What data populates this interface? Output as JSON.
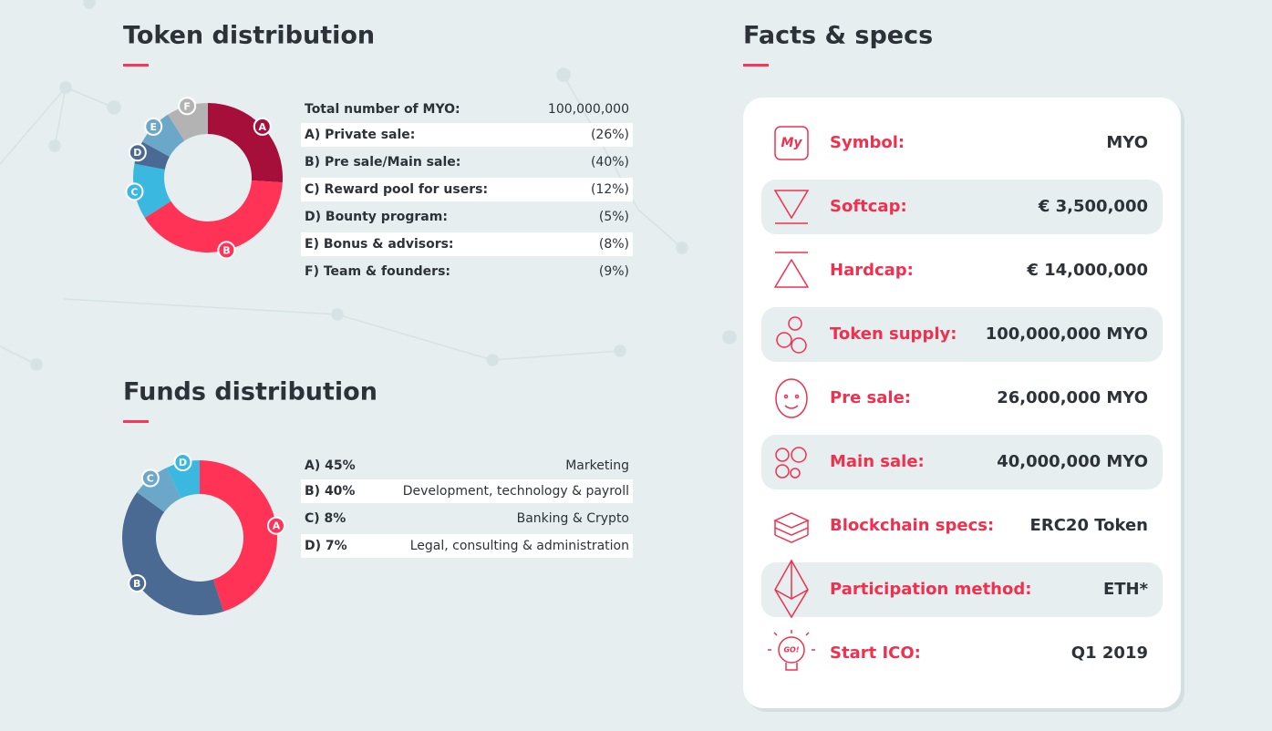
{
  "token_distribution": {
    "title": "Token distribution",
    "total_label": "Total number of MYO:",
    "total_value": "100,000,000",
    "chart": {
      "type": "donut",
      "letters": [
        "A",
        "B",
        "C",
        "D",
        "E",
        "F"
      ],
      "categories": [
        "A) Private sale:",
        "B) Pre sale/Main sale:",
        "C) Reward pool for users:",
        "D) Bounty program:",
        "E) Bonus & advisors:",
        "F) Team & founders:"
      ],
      "values": [
        26,
        40,
        12,
        5,
        8,
        9
      ],
      "value_labels": [
        "(26%)",
        "(40%)",
        "(12%)",
        "(5%)",
        "(8%)",
        "(9%)"
      ],
      "colors": [
        "#a50f3a",
        "#ff3355",
        "#3ab8e0",
        "#4a6a93",
        "#6aa7c8",
        "#b3b3b3"
      ]
    }
  },
  "funds_distribution": {
    "title": "Funds distribution",
    "chart": {
      "type": "donut",
      "letters": [
        "A",
        "B",
        "C",
        "D"
      ],
      "categories": [
        "Marketing",
        "Development, technology & payroll",
        "Banking & Crypto",
        "Legal, consulting & administration"
      ],
      "values": [
        45,
        40,
        8,
        7
      ],
      "value_labels": [
        "A) 45%",
        "B) 40%",
        "C) 8%",
        "D) 7%"
      ],
      "colors": [
        "#ff3355",
        "#4a6a93",
        "#6aa7c8",
        "#3ab8e0"
      ]
    }
  },
  "facts": {
    "title": "Facts & specs",
    "rows": [
      {
        "label": "Symbol:",
        "value": "MYO",
        "icon_text": "My"
      },
      {
        "label": "Softcap:",
        "value": "€ 3,500,000"
      },
      {
        "label": "Hardcap:",
        "value": "€ 14,000,000"
      },
      {
        "label": "Token supply:",
        "value": "100,000,000 MYO"
      },
      {
        "label": "Pre sale:",
        "value": "26,000,000 MYO"
      },
      {
        "label": "Main sale:",
        "value": "40,000,000 MYO"
      },
      {
        "label": "Blockchain specs:",
        "value": "ERC20 Token"
      },
      {
        "label": "Participation method:",
        "value": "ETH*"
      },
      {
        "label": "Start ICO:",
        "value": "Q1 2019",
        "icon_text": "GO!"
      }
    ]
  }
}
